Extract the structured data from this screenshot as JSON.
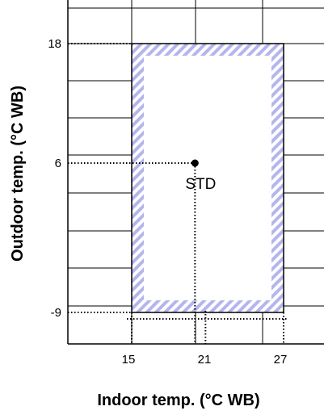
{
  "chart_data": {
    "type": "scatter",
    "title": "",
    "xlabel": "Indoor temp. (°C WB)",
    "ylabel": "Outdoor temp. (°C WB)",
    "x_ticks": [
      15,
      21,
      27
    ],
    "y_ticks": [
      18,
      6,
      -9
    ],
    "operating_range": {
      "x": [
        15,
        27
      ],
      "y": [
        -9,
        18
      ]
    },
    "point": {
      "label": "STD",
      "x": 20,
      "y": 6
    },
    "grid": true,
    "colors": {
      "range_hatch": "#b5b5ee",
      "line": "#000000"
    }
  }
}
